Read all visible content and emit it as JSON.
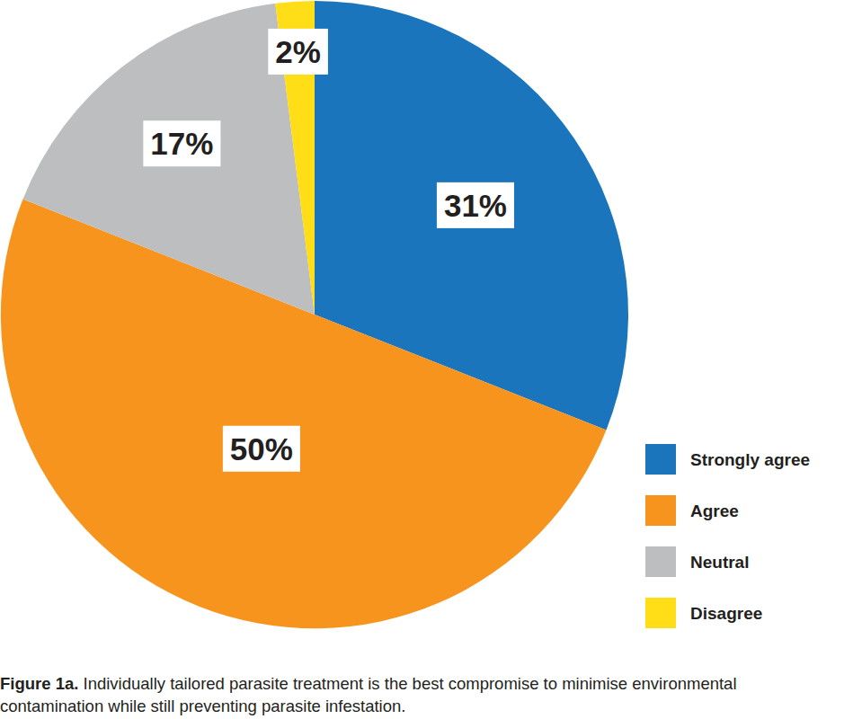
{
  "chart_data": {
    "type": "pie",
    "title": "Figure 1a.",
    "subtitle": "Individually tailored parasite treatment is the best compromise to minimise environmental contamination while still preventing parasite infestation.",
    "categories": [
      "Strongly agree",
      "Agree",
      "Neutral",
      "Disagree"
    ],
    "values": [
      31,
      50,
      17,
      2
    ],
    "value_labels": [
      "31%",
      "50%",
      "17%",
      "2%"
    ],
    "colors": [
      "#1a75bc",
      "#f7941d",
      "#bcbec0",
      "#ffde17"
    ],
    "data_labels": true,
    "legend": "right"
  }
}
